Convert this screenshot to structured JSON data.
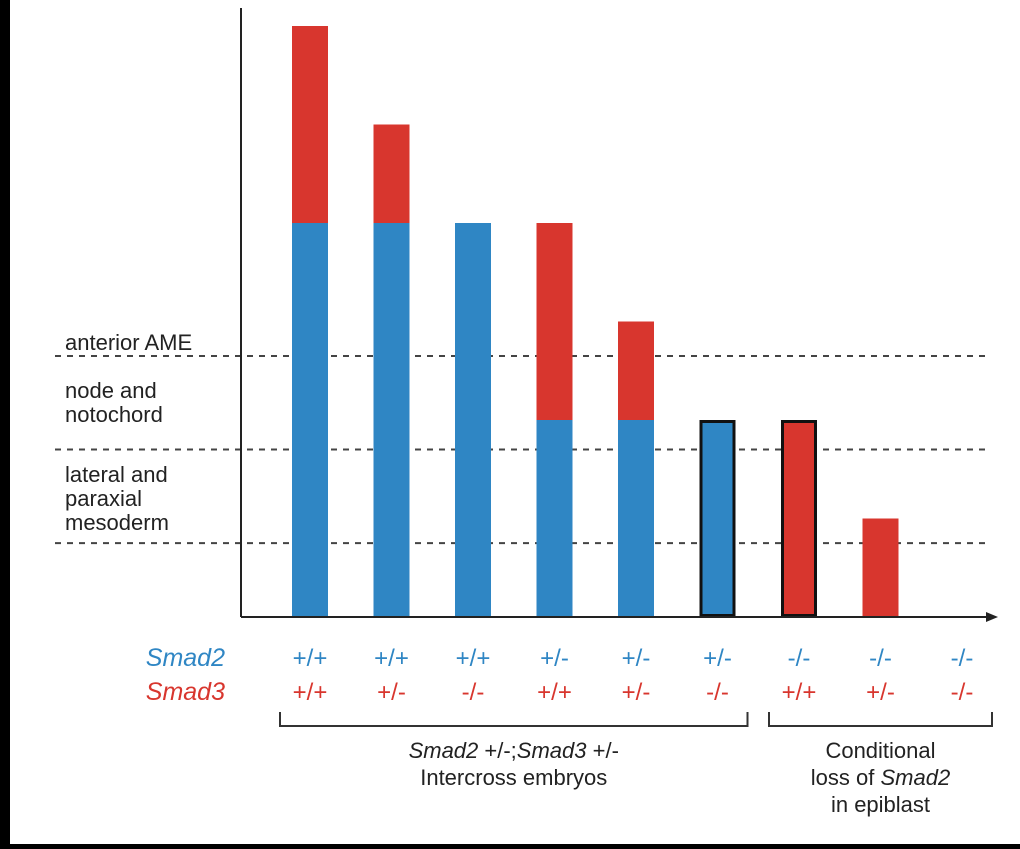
{
  "chart_data": {
    "type": "bar",
    "stacked": true,
    "title": "",
    "xlabel": "",
    "ylabel": "",
    "ylim": [
      0,
      6
    ],
    "y_ticks_shown": false,
    "colors": {
      "smad2": "#2f86c4",
      "smad3": "#d8362e",
      "axis": "#222222",
      "dashed_line": "#444444",
      "background": "#ffffff",
      "frame": "#000000"
    },
    "row_labels": {
      "smad2": "Smad2",
      "smad3": "Smad3"
    },
    "categories": [
      {
        "smad2": "+/+",
        "smad3": "+/+"
      },
      {
        "smad2": "+/+",
        "smad3": "+/-"
      },
      {
        "smad2": "+/+",
        "smad3": "-/-"
      },
      {
        "smad2": "+/-",
        "smad3": "+/+"
      },
      {
        "smad2": "+/-",
        "smad3": "+/-"
      },
      {
        "smad2": "+/-",
        "smad3": "-/-"
      },
      {
        "smad2": "-/-",
        "smad3": "+/+"
      },
      {
        "smad2": "-/-",
        "smad3": "+/-"
      },
      {
        "smad2": "-/-",
        "smad3": "-/-"
      }
    ],
    "series": [
      {
        "key": "smad2",
        "values": [
          4,
          4,
          4,
          2,
          2,
          2,
          0,
          0,
          0
        ]
      },
      {
        "key": "smad3",
        "values": [
          2,
          1,
          0,
          2,
          1,
          0,
          2,
          1,
          0
        ]
      }
    ],
    "outlined_bars": [
      5,
      6
    ],
    "threshold_lines": [
      {
        "label": "anterior AME",
        "y": 2.65
      },
      {
        "label": "node and notochord",
        "y": 1.7
      },
      {
        "label": "lateral and paraxial mesoderm",
        "y": 0.75
      }
    ],
    "group_brackets": [
      {
        "from_bar": 0,
        "to_bar": 5,
        "label_parts": [
          [
            "Smad2",
            true
          ],
          [
            " +/-;",
            false
          ],
          [
            "Smad3",
            true
          ],
          [
            " +/-",
            false
          ]
        ],
        "label_line2": "Intercross embryos"
      },
      {
        "from_bar": 6,
        "to_bar": 8,
        "label_line1": "Conditional",
        "label_parts": [
          [
            "loss of ",
            false
          ],
          [
            "Smad2",
            true
          ]
        ],
        "label_line3": "in epiblast"
      }
    ]
  }
}
